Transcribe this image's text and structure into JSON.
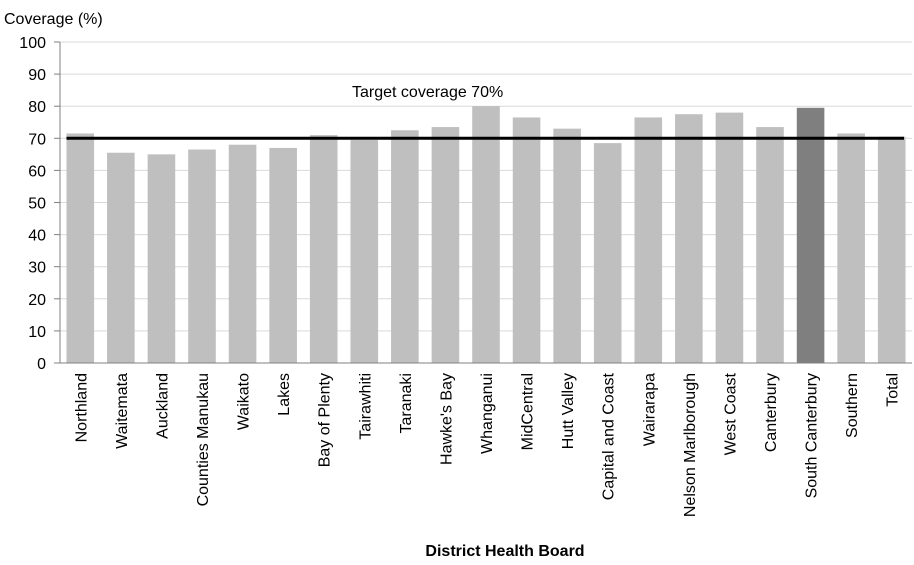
{
  "chart_data": {
    "type": "bar",
    "ylabel": "Coverage (%)",
    "xlabel": "District Health Board",
    "ylim": [
      0,
      100
    ],
    "yticks": [
      0,
      10,
      20,
      30,
      40,
      50,
      60,
      70,
      80,
      90,
      100
    ],
    "grid": true,
    "categories": [
      "Northland",
      "Waitemata",
      "Auckland",
      "Counties Manukau",
      "Waikato",
      "Lakes",
      "Bay of Plenty",
      "Tairawhiti",
      "Taranaki",
      "Hawke's Bay",
      "Whanganui",
      "MidCentral",
      "Hutt Valley",
      "Capital and Coast",
      "Wairarapa",
      "Nelson Marlborough",
      "West Coast",
      "Canterbury",
      "South Canterbury",
      "Southern",
      "Total"
    ],
    "values": [
      71.5,
      65.5,
      65,
      66.5,
      68,
      67,
      71,
      69.5,
      72.5,
      73.5,
      80,
      76.5,
      73,
      68.5,
      76.5,
      77.5,
      78,
      73.5,
      79.5,
      71.5,
      70.5
    ],
    "highlight": "South Canterbury",
    "colors": {
      "bar": "#bfbfbf",
      "highlight": "#7f7f7f",
      "grid": "#d9d9d9",
      "target": "#000000"
    },
    "target": {
      "value": 70,
      "label": "Target coverage 70%"
    }
  }
}
